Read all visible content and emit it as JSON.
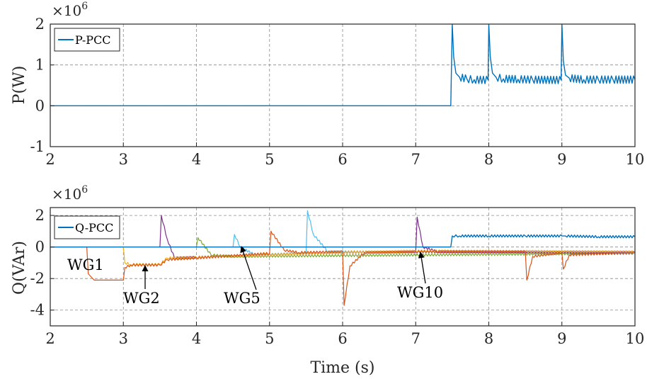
{
  "chart_data": [
    {
      "type": "line",
      "ylabel": "P(W)",
      "xlabel": "",
      "y_exponent_base": "×10",
      "y_exponent_power": "6",
      "xlim": [
        2,
        10
      ],
      "ylim": [
        -1,
        2
      ],
      "xticks": [
        "2",
        "3",
        "4",
        "5",
        "6",
        "7",
        "8",
        "9",
        "10"
      ],
      "yticks": [
        "-1",
        "0",
        "1",
        "2"
      ],
      "grid": true,
      "legend_position": "top-left",
      "series": [
        {
          "name": "P-PCC",
          "color": "#0072BD",
          "x": [
            2,
            7.48,
            7.5,
            7.52,
            7.55,
            7.6,
            7.7,
            7.8,
            7.99,
            8.0,
            8.02,
            8.05,
            8.1,
            8.2,
            8.4,
            8.6,
            8.99,
            9.0,
            9.02,
            9.05,
            9.1,
            9.3,
            9.5,
            9.7,
            10
          ],
          "y": [
            0,
            0,
            2.0,
            1.2,
            0.8,
            0.7,
            0.66,
            0.64,
            0.63,
            2.0,
            1.2,
            0.8,
            0.7,
            0.66,
            0.65,
            0.64,
            0.63,
            2.0,
            1.1,
            0.75,
            0.68,
            0.64,
            0.64,
            0.64,
            0.64
          ]
        }
      ]
    },
    {
      "type": "line",
      "ylabel": "Q(VAr)",
      "xlabel": "Time (s)",
      "y_exponent_base": "×10",
      "y_exponent_power": "6",
      "xlim": [
        2,
        10
      ],
      "ylim": [
        -5,
        2.5
      ],
      "xticks": [
        "2",
        "3",
        "4",
        "5",
        "6",
        "7",
        "8",
        "9",
        "10"
      ],
      "yticks": [
        "-4",
        "-2",
        "0",
        "2"
      ],
      "grid": true,
      "legend_position": "top-left",
      "series": [
        {
          "name": "Q-PCC",
          "color": "#0072BD",
          "x": [
            2,
            7.48,
            7.5,
            7.6,
            8.0,
            8.5,
            9.0,
            9.05,
            9.5,
            10
          ],
          "y": [
            0,
            0,
            0.7,
            0.7,
            0.7,
            0.7,
            0.7,
            0.7,
            0.65,
            0.65
          ]
        },
        {
          "name": "",
          "color": "#D95319",
          "x": [
            2,
            2.5,
            2.52,
            2.6,
            3.0,
            3.02,
            3.1,
            3.5,
            3.6,
            4.0,
            5.0,
            5.02,
            5.2,
            5.4,
            6.0,
            6.02,
            6.1,
            6.3,
            7.0,
            8.5,
            8.52,
            8.6,
            9.0,
            9.02,
            9.1,
            10
          ],
          "y": [
            0,
            0,
            -1.7,
            -2.1,
            -2.1,
            -1.3,
            -1.15,
            -1.15,
            -0.8,
            -0.7,
            -0.4,
            1.0,
            -0.2,
            -0.35,
            -0.3,
            -3.7,
            -1.2,
            -0.35,
            -0.3,
            -0.3,
            -2.1,
            -0.6,
            -0.35,
            -1.4,
            -0.5,
            -0.35
          ]
        },
        {
          "name": "",
          "color": "#EDB120",
          "x": [
            3.0,
            3.02,
            3.1,
            3.5,
            3.6,
            4.0,
            6.0,
            7.0,
            10
          ],
          "y": [
            0,
            -1.0,
            -1.1,
            -1.1,
            -0.7,
            -0.65,
            -0.35,
            -0.25,
            -0.3
          ]
        },
        {
          "name": "",
          "color": "#7E2F8E",
          "x": [
            3.5,
            3.52,
            3.6,
            3.7,
            4.0,
            6.0,
            7.0,
            7.02,
            7.1,
            7.3,
            10
          ],
          "y": [
            0,
            2.0,
            0.5,
            -0.7,
            -0.65,
            -0.35,
            -0.3,
            1.9,
            0.0,
            -0.3,
            -0.35
          ]
        },
        {
          "name": "",
          "color": "#77AC30",
          "x": [
            4.0,
            4.02,
            4.2,
            4.5,
            10
          ],
          "y": [
            0,
            0.6,
            -0.5,
            -0.6,
            -0.4
          ]
        },
        {
          "name": "",
          "color": "#4DBEEE",
          "x": [
            4.5,
            4.52,
            4.6,
            4.8,
            5.5,
            5.52,
            5.6,
            5.8,
            10
          ],
          "y": [
            0,
            0.8,
            0.0,
            -0.5,
            -0.4,
            2.3,
            0.8,
            -0.3,
            -0.35
          ]
        }
      ],
      "annotations": [
        "WG1",
        "WG2",
        "WG5",
        "WG10"
      ]
    }
  ]
}
